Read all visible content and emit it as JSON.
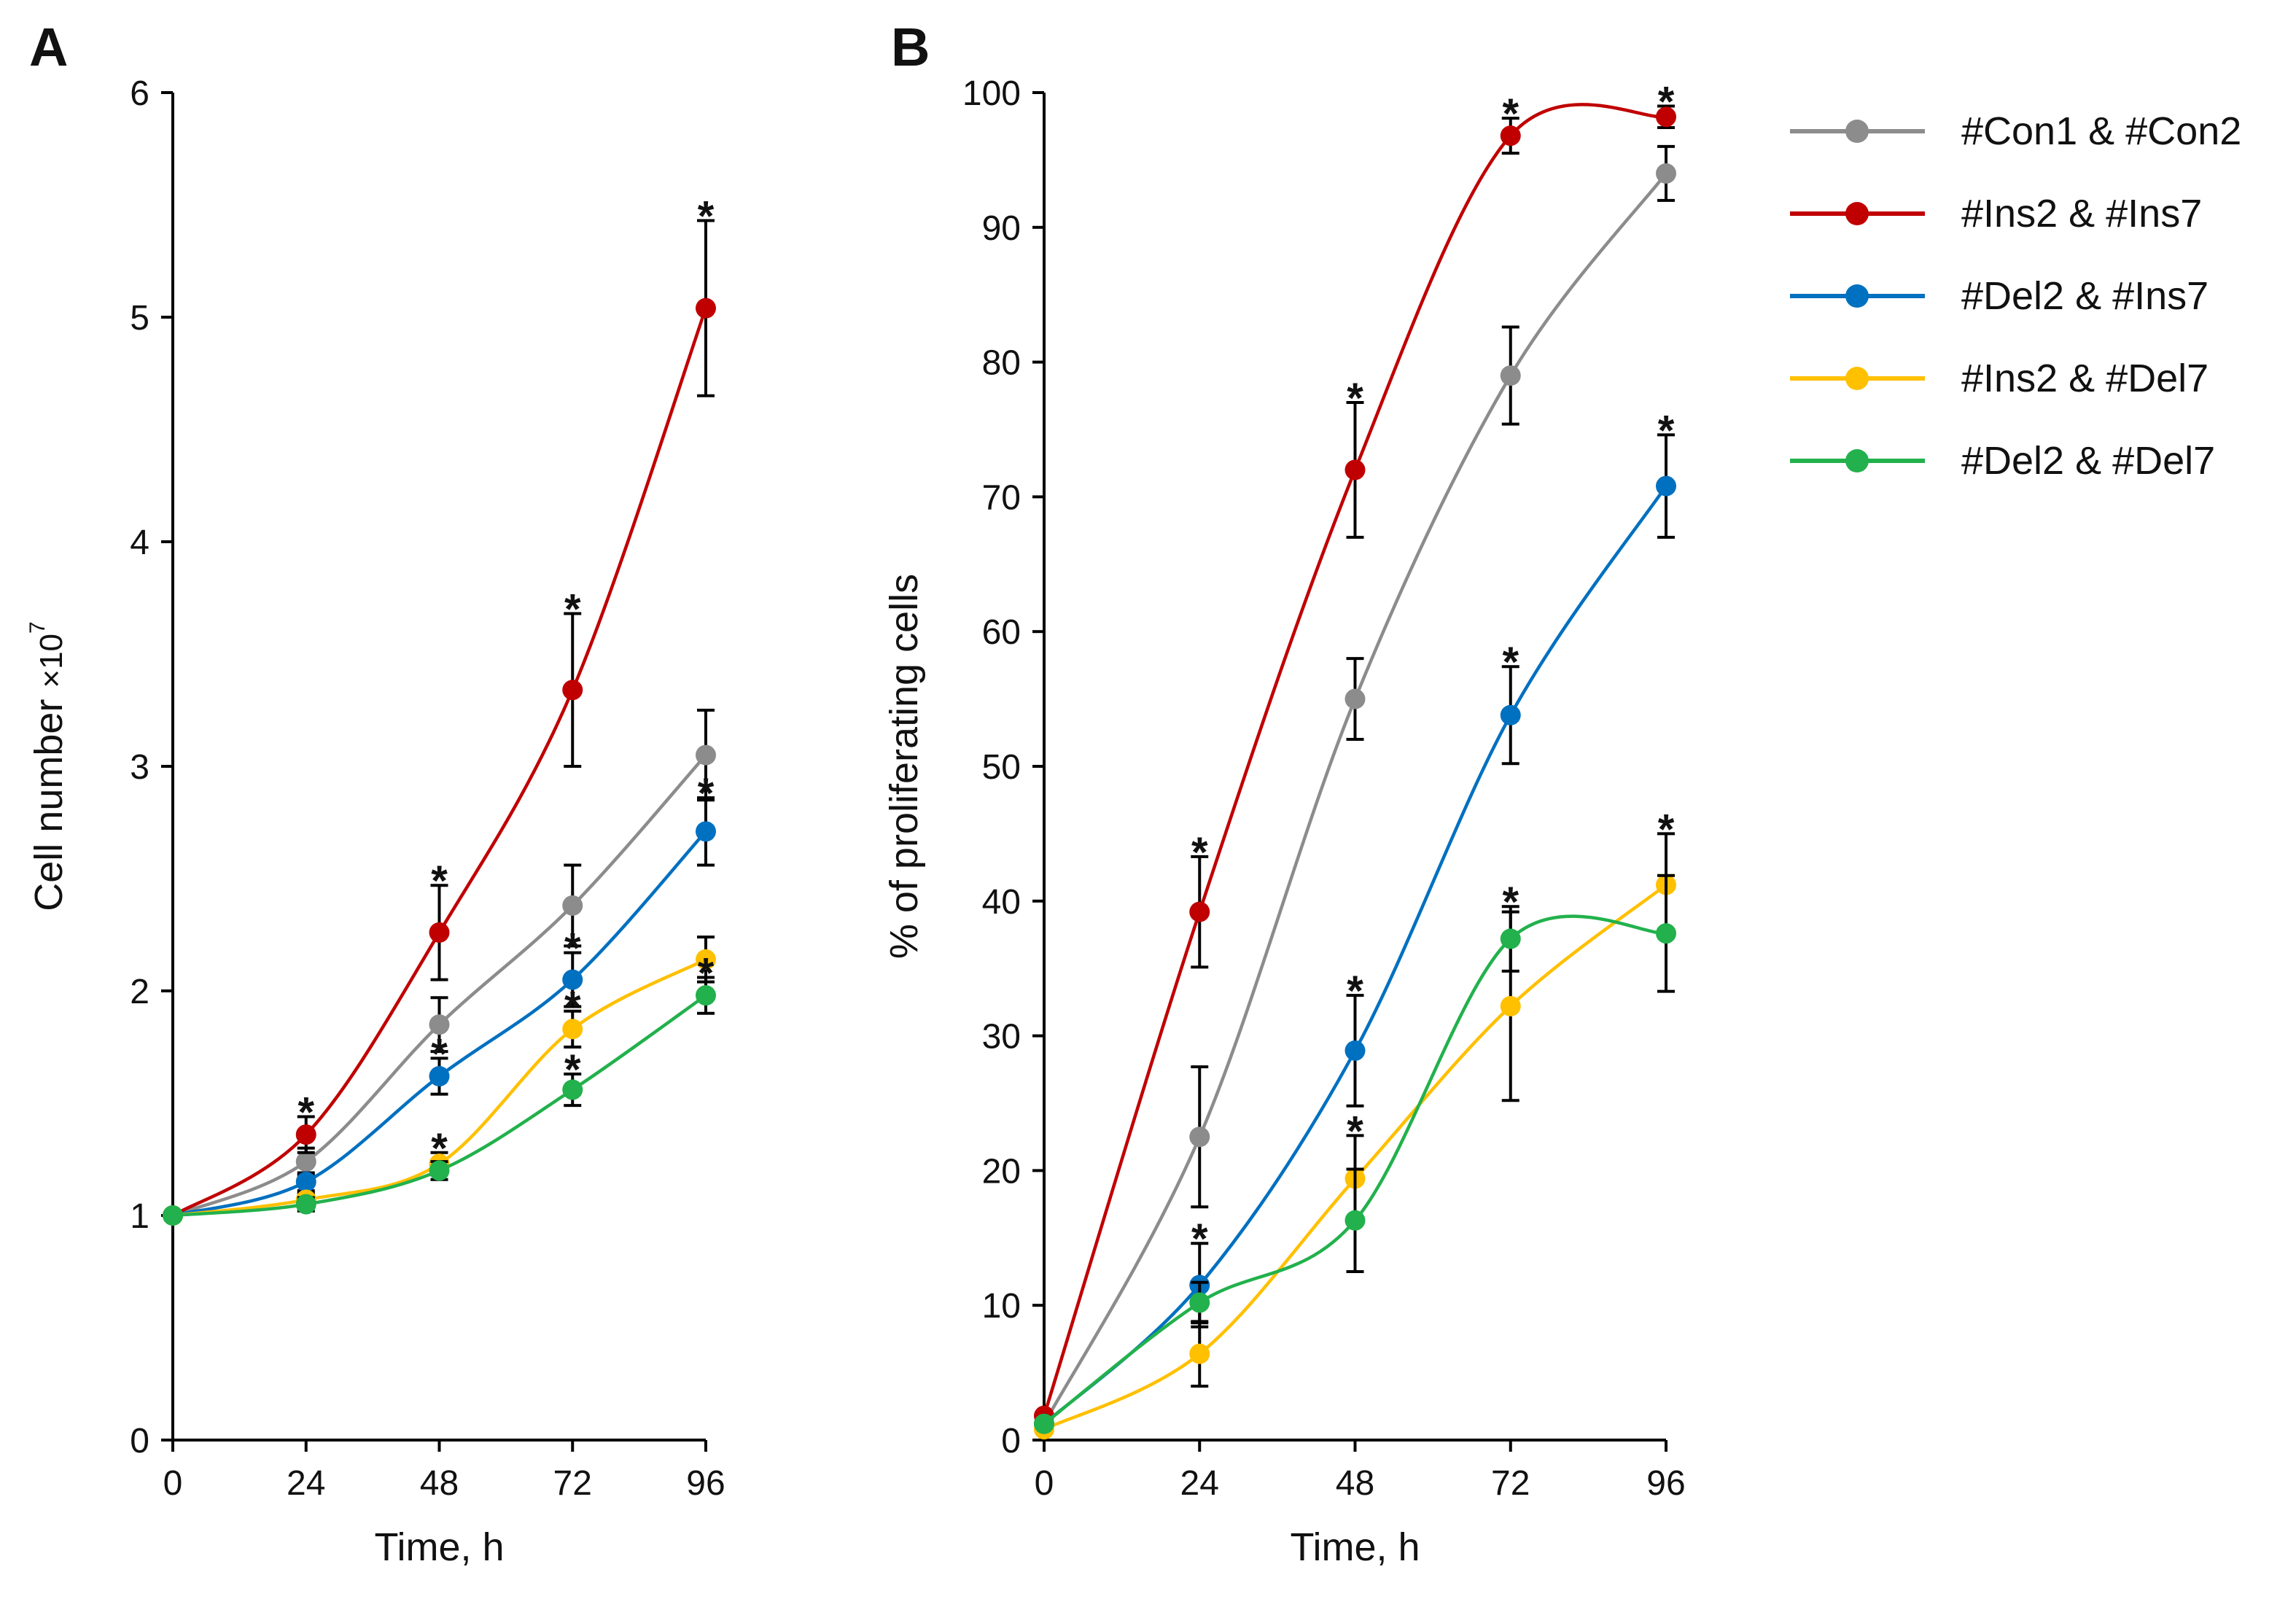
{
  "chart_data": [
    {
      "type": "line",
      "panel_label": "A",
      "xlabel": "Time, h",
      "ylabel_main": "Cell number ",
      "ylabel_sup": "×10",
      "ylabel_exp": "7",
      "xlim": [
        0,
        96
      ],
      "ylim": [
        0,
        6
      ],
      "x": [
        0,
        24,
        48,
        72,
        96
      ],
      "x_ticks": [
        "0",
        "24",
        "48",
        "72",
        "96"
      ],
      "y_ticks": [
        "0",
        "1",
        "2",
        "3",
        "4",
        "5",
        "6"
      ],
      "y_tick_values": [
        0,
        1,
        2,
        3,
        4,
        5,
        6
      ],
      "series": [
        {
          "name": "#Con1 & #Con2",
          "color": "#8c8c8c",
          "values": [
            1.0,
            1.24,
            1.85,
            2.38,
            3.05
          ],
          "errors": [
            0,
            0.06,
            0.12,
            0.18,
            0.2
          ],
          "sig": [
            false,
            false,
            false,
            false,
            false
          ]
        },
        {
          "name": "#Ins2 & #Ins7",
          "color": "#c00000",
          "values": [
            1.0,
            1.36,
            2.26,
            3.34,
            5.04
          ],
          "errors": [
            0,
            0.08,
            0.21,
            0.34,
            0.39
          ],
          "sig": [
            false,
            true,
            true,
            true,
            true
          ]
        },
        {
          "name": "#Del2 & #Ins7",
          "color": "#0070c0",
          "values": [
            1.0,
            1.15,
            1.62,
            2.05,
            2.71
          ],
          "errors": [
            0,
            0.04,
            0.08,
            0.12,
            0.15
          ],
          "sig": [
            false,
            false,
            true,
            true,
            true
          ]
        },
        {
          "name": "#Ins2 & #Del7",
          "color": "#ffc000",
          "values": [
            1.0,
            1.07,
            1.23,
            1.83,
            2.14
          ],
          "errors": [
            0,
            0.03,
            0.05,
            0.08,
            0.1
          ],
          "sig": [
            false,
            false,
            true,
            true,
            false
          ]
        },
        {
          "name": "#Del2 & #Del7",
          "color": "#22b14c",
          "values": [
            1.0,
            1.05,
            1.2,
            1.56,
            1.98
          ],
          "errors": [
            0,
            0.03,
            0.04,
            0.07,
            0.08
          ],
          "sig": [
            false,
            false,
            false,
            true,
            true
          ]
        }
      ]
    },
    {
      "type": "line",
      "panel_label": "B",
      "xlabel": "Time, h",
      "ylabel": "% of proliferating cells",
      "xlim": [
        0,
        96
      ],
      "ylim": [
        0,
        100
      ],
      "x": [
        0,
        24,
        48,
        72,
        96
      ],
      "x_ticks": [
        "0",
        "24",
        "48",
        "72",
        "96"
      ],
      "y_ticks": [
        "0",
        "10",
        "20",
        "30",
        "40",
        "50",
        "60",
        "70",
        "80",
        "90",
        "100"
      ],
      "y_tick_values": [
        0,
        10,
        20,
        30,
        40,
        50,
        60,
        70,
        80,
        90,
        100
      ],
      "series": [
        {
          "name": "#Con1 & #Con2",
          "color": "#8c8c8c",
          "values": [
            1.2,
            22.5,
            55,
            79,
            94
          ],
          "errors": [
            0,
            5.2,
            3.0,
            3.6,
            2.0
          ],
          "sig": [
            false,
            false,
            false,
            false,
            false
          ]
        },
        {
          "name": "#Ins2 & #Ins7",
          "color": "#c00000",
          "values": [
            1.8,
            39.2,
            72,
            96.8,
            98.2
          ],
          "errors": [
            0,
            4.1,
            5.0,
            1.3,
            0.8
          ],
          "sig": [
            false,
            true,
            true,
            true,
            true
          ]
        },
        {
          "name": "#Del2 & #Ins7",
          "color": "#0070c0",
          "values": [
            1.2,
            11.5,
            28.9,
            53.8,
            70.8
          ],
          "errors": [
            0,
            3.1,
            4.1,
            3.6,
            3.8
          ],
          "sig": [
            false,
            true,
            true,
            true,
            true
          ]
        },
        {
          "name": "#Ins2 & #Del7",
          "color": "#ffc000",
          "values": [
            0.8,
            6.4,
            19.4,
            32.2,
            41.2
          ],
          "errors": [
            0,
            2.4,
            3.2,
            7.0,
            3.8
          ],
          "sig": [
            false,
            false,
            true,
            false,
            true
          ]
        },
        {
          "name": "#Del2 & #Del7",
          "color": "#22b14c",
          "values": [
            1.2,
            10.2,
            16.3,
            37.2,
            37.6
          ],
          "errors": [
            0,
            1.5,
            3.8,
            2.4,
            4.3
          ],
          "sig": [
            false,
            false,
            false,
            true,
            false
          ]
        }
      ]
    }
  ],
  "legend": {
    "position": "top-right",
    "items": [
      {
        "label": "#Con1 & #Con2",
        "color": "#8c8c8c"
      },
      {
        "label": "#Ins2 & #Ins7",
        "color": "#c00000"
      },
      {
        "label": "#Del2 & #Ins7",
        "color": "#0070c0"
      },
      {
        "label": "#Ins2 & #Del7",
        "color": "#ffc000"
      },
      {
        "label": "#Del2 & #Del7",
        "color": "#22b14c"
      }
    ]
  },
  "significance_symbol": "*"
}
